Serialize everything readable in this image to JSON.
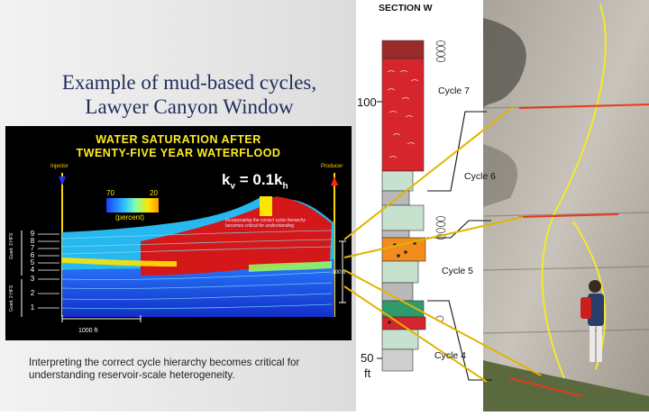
{
  "title": {
    "line1": "Example of mud-based cycles,",
    "line2": "Lawyer Canyon Window"
  },
  "panel": {
    "title_line1": "WATER SATURATION AFTER",
    "title_line2": "TWENTY-FIVE YEAR WATERFLOOD",
    "kv_main": "k",
    "kv_sub1": "v",
    "kv_eq": " = 0.1k",
    "kv_sub2": "h",
    "injector": "Injector",
    "producer": "Producer",
    "legend_left": "70",
    "legend_right": "20",
    "legend_unit": "(percent)",
    "scale_horizontal": "1000 ft",
    "scale_vertical": "100 ft",
    "annotation": "Incorporating the correct cycle hierarchy becomes critical for understanding",
    "layers": [
      "9",
      "8",
      "7",
      "6",
      "5",
      "4",
      "3",
      "2",
      "1"
    ],
    "side_label_upper": "Guad. 3 HFS",
    "side_label_lower": "Guad. 2 HFS",
    "colors": {
      "water_high": "#1a3cff",
      "water_mid": "#2ec4ff",
      "water_low": "#ffe400",
      "oil": "#d4181a"
    }
  },
  "caption": "Interpreting the correct cycle hierarchy becomes critical for understanding reservoir-scale heterogeneity.",
  "section": {
    "title": "SECTION W",
    "depth_100": "100",
    "depth_50": "50",
    "unit": "ft",
    "cycles": [
      "Cycle 7",
      "Cycle 6",
      "Cycle 5",
      "Cycle 4"
    ]
  }
}
